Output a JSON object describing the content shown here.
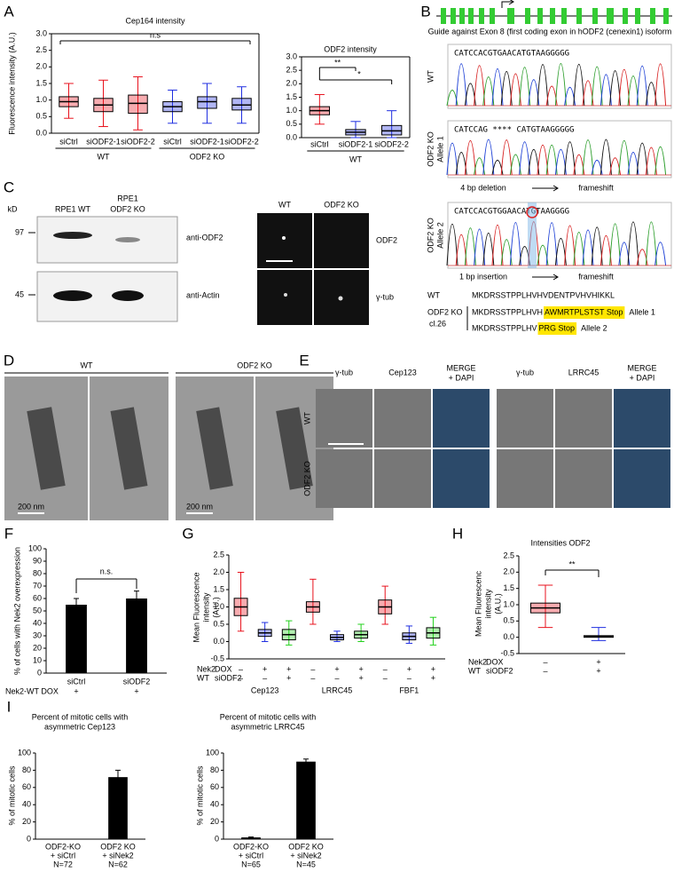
{
  "A": {
    "label": "A",
    "left": {
      "type": "box",
      "title": "Cep164 intensity",
      "ylabel": "Fluorescence intensity (A.U.)",
      "annotation": "n.s",
      "ylim": [
        0,
        3
      ],
      "yticks": [
        {
          "value": 0,
          "label": "0.0"
        },
        0.5,
        {
          "value": 1,
          "label": "1.0"
        },
        1.5,
        {
          "value": 2,
          "label": "2.0"
        },
        2.5,
        {
          "value": 3,
          "label": "3.0"
        }
      ],
      "categories": [
        "siCtrl",
        "siODF2-1",
        "siODF2-2",
        "siCtrl",
        "siODF2-1",
        "siODF2-2"
      ],
      "group_labels": [
        "WT",
        "ODF2 KO"
      ],
      "boxes": [
        {
          "color": "#e8111c",
          "median": 0.95,
          "q1": 0.8,
          "q3": 1.1,
          "low": 0.45,
          "high": 1.5
        },
        {
          "color": "#e8111c",
          "median": 0.85,
          "q1": 0.65,
          "q3": 1.05,
          "low": 0.2,
          "high": 1.6
        },
        {
          "color": "#e8111c",
          "median": 0.9,
          "q1": 0.6,
          "q3": 1.15,
          "low": 0.1,
          "high": 1.7
        },
        {
          "color": "#1f2ee0",
          "median": 0.8,
          "q1": 0.65,
          "q3": 0.95,
          "low": 0.3,
          "high": 1.3
        },
        {
          "color": "#1f2ee0",
          "median": 0.95,
          "q1": 0.75,
          "q3": 1.1,
          "low": 0.3,
          "high": 1.5
        },
        {
          "color": "#1f2ee0",
          "median": 0.85,
          "q1": 0.7,
          "q3": 1.05,
          "low": 0.3,
          "high": 1.4
        }
      ]
    },
    "right": {
      "type": "box",
      "title": "ODF2 intensity",
      "annotations": [
        "**",
        "*"
      ],
      "ylim": [
        0,
        3
      ],
      "yticks": [
        {
          "value": 0,
          "label": "0.0"
        },
        0.5,
        {
          "value": 1,
          "label": "1.0"
        },
        1.5,
        {
          "value": 2,
          "label": "2.0"
        },
        2.5,
        {
          "value": 3,
          "label": "3.0"
        }
      ],
      "categories": [
        "siCtrl",
        "siODF2-1",
        "siODF2-2"
      ],
      "group_labels": [
        "WT"
      ],
      "boxes": [
        {
          "color": "#e8111c",
          "median": 1.0,
          "q1": 0.85,
          "q3": 1.15,
          "low": 0.5,
          "high": 1.6
        },
        {
          "color": "#1f2ee0",
          "median": 0.2,
          "q1": 0.1,
          "q3": 0.3,
          "low": 0,
          "high": 0.6
        },
        {
          "color": "#1f2ee0",
          "median": 0.25,
          "q1": 0.1,
          "q3": 0.45,
          "low": 0,
          "high": 1.0
        }
      ]
    }
  },
  "B": {
    "label": "B",
    "caption": "Guide against Exon 8 (first coding exon in hODF2 (cenexin1) isoform",
    "traces": [
      {
        "label": [
          "WT"
        ],
        "sequence": "CATCCACGTGAACATGTAAGGGGG"
      },
      {
        "label": [
          "ODF2  KO",
          "Allele 1"
        ],
        "sequence": "CATCCAG **** CATGTAAGGGGG"
      },
      {
        "label": [
          "ODF2  KO",
          "Allele 2"
        ],
        "sequence": "CATCCACGTGGAACATGTAAGGGG"
      }
    ],
    "notes": [
      [
        "4 bp deletion",
        "frameshift"
      ],
      [
        "1 bp insertion",
        "frameshift"
      ]
    ],
    "protein": {
      "wt_label": "WT",
      "wt": "MKDRSSTPPLHVHVDENTPVHVHIKKL",
      "ko_label": [
        "ODF2 KO",
        "cl.26"
      ],
      "alleles": [
        {
          "sequence": "MKDRSSTPPLHVH",
          "highlight": "AWMRTPLSTST Stop",
          "name": "Allele 1"
        },
        {
          "sequence": "MKDRSSTPPLHV",
          "highlight": "PRG Stop",
          "name": "Allele 2"
        }
      ]
    }
  },
  "C": {
    "label": "C",
    "unit": "kD",
    "markers": [
      97,
      45
    ],
    "lanes": [
      [
        "RPE1 WT"
      ],
      [
        "RPE1",
        "ODF2 KO"
      ]
    ],
    "blots": [
      "anti-ODF2",
      "anti-Actin"
    ],
    "columns": [
      "WT",
      "ODF2 KO"
    ],
    "rows": [
      "ODF2",
      "γ-tub"
    ]
  },
  "D": {
    "label": "D",
    "groups": [
      "WT",
      "ODF2 KO"
    ],
    "scale": "200 nm"
  },
  "E": {
    "label": "E",
    "headers": [
      [
        "γ-tub"
      ],
      [
        "Cep123"
      ],
      [
        "MERGE",
        "+ DAPI"
      ],
      [
        "γ-tub"
      ],
      [
        "LRRC45"
      ],
      [
        "MERGE",
        "+ DAPI"
      ]
    ],
    "rows": [
      "WT",
      "ODF2 KO"
    ]
  },
  "F": {
    "label": "F",
    "type": "bar",
    "ylabel": "% of cells with Nek2 overexpression",
    "annotation": "n.s.",
    "row_label": "Nek2-WT  DOX",
    "ylim": [
      0,
      100
    ],
    "yticks": [
      0,
      10,
      20,
      30,
      40,
      50,
      60,
      70,
      80,
      90,
      100
    ],
    "categories": [
      "siCtrl",
      "siODF2"
    ],
    "signs": [
      "+",
      "+"
    ],
    "values": [
      55,
      60
    ],
    "errors": [
      5,
      6
    ]
  },
  "G": {
    "label": "G",
    "type": "box",
    "ylabel": [
      "Mean Fluorescence",
      "intensity",
      "(A.U.)"
    ],
    "ylim": [
      -0.5,
      2.5
    ],
    "yticks": [
      -0.5,
      {
        "value": 0,
        "label": "0.0"
      },
      0.5,
      {
        "value": 1,
        "label": "1.0"
      },
      1.5,
      {
        "value": 2,
        "label": "2.0"
      },
      2.5
    ],
    "row_labels": [
      [
        "Nek2",
        "DOX"
      ],
      [
        "WT",
        "siODF2"
      ]
    ],
    "signs": [
      [
        "–",
        "+",
        "+",
        "–",
        "+",
        "+",
        "–",
        "+",
        "+"
      ],
      [
        "–",
        "–",
        "+",
        "–",
        "–",
        "+",
        "–",
        "–",
        "+"
      ]
    ],
    "group_labels": [
      "Cep123",
      "LRRC45",
      "FBF1"
    ],
    "boxes": [
      {
        "color": "#e8111c",
        "median": 1.0,
        "q1": 0.75,
        "q3": 1.25,
        "low": 0.3,
        "high": 2.0
      },
      {
        "color": "#1f2ee0",
        "median": 0.25,
        "q1": 0.15,
        "q3": 0.35,
        "low": 0,
        "high": 0.55
      },
      {
        "color": "#22d11c",
        "median": 0.2,
        "q1": 0.05,
        "q3": 0.35,
        "low": -0.1,
        "high": 0.6
      },
      {
        "color": "#e8111c",
        "median": 1.0,
        "q1": 0.85,
        "q3": 1.15,
        "low": 0.5,
        "high": 1.8
      },
      {
        "color": "#1f2ee0",
        "median": 0.12,
        "q1": 0.05,
        "q3": 0.2,
        "low": 0,
        "high": 0.3
      },
      {
        "color": "#22d11c",
        "median": 0.2,
        "q1": 0.1,
        "q3": 0.3,
        "low": 0,
        "high": 0.5
      },
      {
        "color": "#e8111c",
        "median": 1.0,
        "q1": 0.8,
        "q3": 1.2,
        "low": 0.5,
        "high": 1.6
      },
      {
        "color": "#1f2ee0",
        "median": 0.15,
        "q1": 0.05,
        "q3": 0.25,
        "low": -0.05,
        "high": 0.45
      },
      {
        "color": "#22d11c",
        "median": 0.25,
        "q1": 0.1,
        "q3": 0.4,
        "low": -0.1,
        "high": 0.7
      }
    ]
  },
  "H": {
    "label": "H",
    "type": "box",
    "title": "Intensities ODF2",
    "ylabel": [
      "Mean Fluorescenc",
      "intensity",
      "(A.U.)"
    ],
    "annotation": "**",
    "ylim": [
      -0.5,
      2.5
    ],
    "yticks": [
      -0.5,
      {
        "value": 0,
        "label": "0.0"
      },
      0.5,
      {
        "value": 1,
        "label": "1.0"
      },
      1.5,
      {
        "value": 2,
        "label": "2.0"
      },
      2.5
    ],
    "row_labels": [
      [
        "Nek2",
        "DOX"
      ],
      [
        "WT",
        "siODF2"
      ]
    ],
    "signs": [
      [
        "–",
        "+"
      ],
      [
        "–",
        "+"
      ]
    ],
    "boxes": [
      {
        "color": "#e8111c",
        "median": 0.9,
        "q1": 0.75,
        "q3": 1.05,
        "low": 0.3,
        "high": 1.6
      },
      {
        "color": "#1f2ee0",
        "median": 0.02,
        "q1": 0,
        "q3": 0.05,
        "low": -0.1,
        "high": 0.3
      }
    ]
  },
  "I": {
    "label": "I",
    "charts": [
      {
        "type": "bar",
        "title": [
          "Percent of mitotic cells with",
          "asymmetric Cep123"
        ],
        "ylabel": "% of mitotic cells",
        "ylim": [
          0,
          100
        ],
        "yticks": [
          0,
          20,
          40,
          60,
          80,
          100
        ],
        "categories": [
          [
            "ODF2-KO",
            "+ siCtrl",
            "N=72"
          ],
          [
            "ODF2 KO",
            "+ siNek2",
            "N=62"
          ]
        ],
        "values": [
          0,
          72
        ],
        "errors": [
          0,
          8
        ]
      },
      {
        "type": "bar",
        "title": [
          "Percent of mitotic cells with",
          "asymmetric LRRC45"
        ],
        "ylabel": "% of mitotic cells",
        "ylim": [
          0,
          100
        ],
        "yticks": [
          0,
          20,
          40,
          60,
          80,
          100
        ],
        "categories": [
          [
            "ODF2-KO",
            "+ siCtrl",
            "N=65"
          ],
          [
            "ODF2 KO",
            "+ siNek2",
            "N=45"
          ]
        ],
        "values": [
          2,
          90
        ],
        "errors": [
          0.5,
          3
        ]
      }
    ]
  }
}
